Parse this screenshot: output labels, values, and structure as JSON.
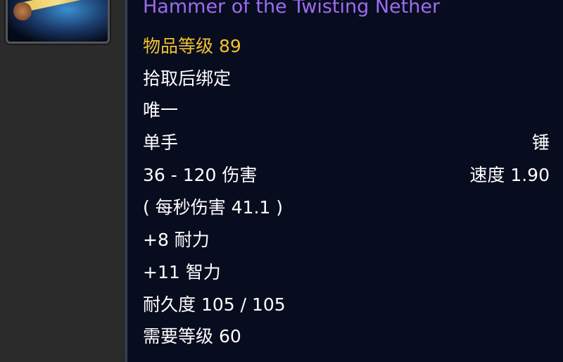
{
  "item": {
    "icon": "hammer-item-icon",
    "name": "Hammer of the Twisting Nether",
    "item_level": "物品等级 89",
    "binding": "拾取后绑定",
    "unique": "唯一",
    "slot": "单手",
    "type": "锤",
    "damage": "36 - 120 伤害",
    "speed": "速度 1.90",
    "dps": "( 每秒伤害 41.1 )",
    "stat1": "+8 耐力",
    "stat2": "+11 智力",
    "durability": "耐久度 105 / 105",
    "required_level": "需要等级 60"
  },
  "colors": {
    "name": "#9d6cf0",
    "item_level": "#f2c12e",
    "text": "#ffffff",
    "background": "#080c1f"
  }
}
